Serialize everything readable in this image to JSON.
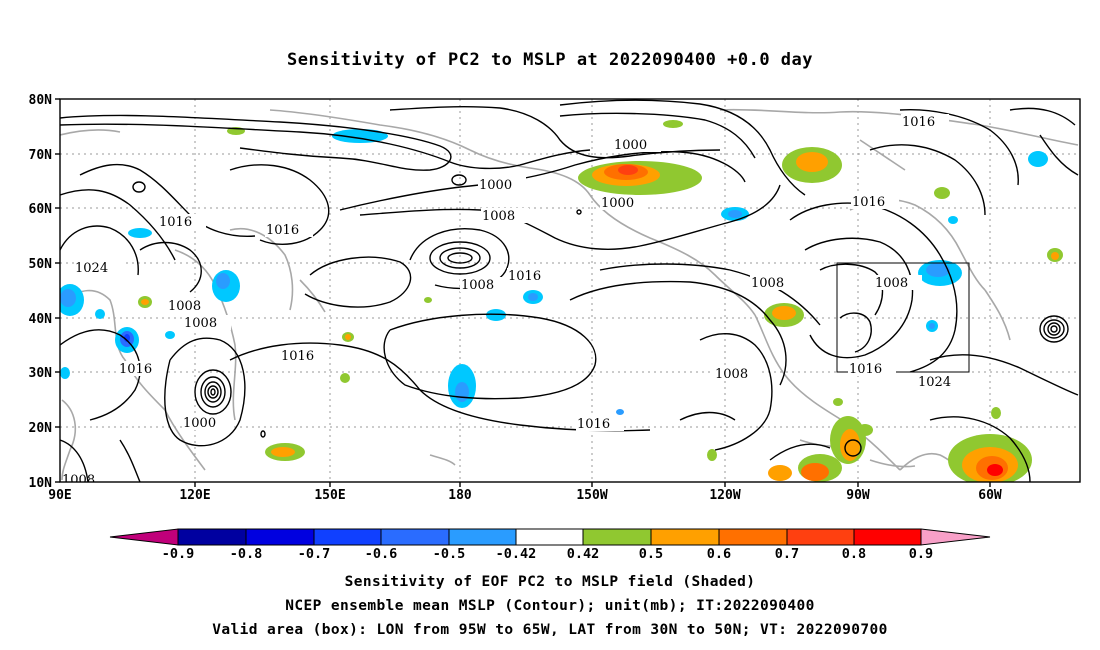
{
  "title": "Sensitivity of PC2 to MSLP at 2022090400 +0.0 day",
  "map": {
    "lat_ticks": [
      "80N",
      "70N",
      "60N",
      "50N",
      "40N",
      "30N",
      "20N",
      "10N"
    ],
    "lon_ticks": [
      "90E",
      "120E",
      "150E",
      "180",
      "150W",
      "120W",
      "90W",
      "60W"
    ],
    "box_label": "valid area box",
    "contour_labels": [
      "1000",
      "1000",
      "1000",
      "1008",
      "1008",
      "1008",
      "1008",
      "1008",
      "1008",
      "1016",
      "1016",
      "1016",
      "1016",
      "1016",
      "1016",
      "1016",
      "1016",
      "1016",
      "1024",
      "1024",
      "1008"
    ]
  },
  "colorbar": {
    "labels": [
      "-0.9",
      "-0.8",
      "-0.7",
      "-0.6",
      "-0.5",
      "-0.42",
      "0.42",
      "0.5",
      "0.6",
      "0.7",
      "0.8",
      "0.9"
    ],
    "colors": [
      "#c0007a",
      "#0000a0",
      "#0000e0",
      "#1040ff",
      "#2a6cff",
      "#2a9cff",
      "#00c8ff",
      "#ffffff",
      "#90c830",
      "#ffa000",
      "#ff7000",
      "#ff4010",
      "#ff0000",
      "#f8a0c8"
    ]
  },
  "captions": {
    "line1": "Sensitivity of EOF PC2 to MSLP field (Shaded)",
    "line2": "NCEP ensemble mean MSLP (Contour); unit(mb); IT:2022090400",
    "line3": "Valid area (box): LON from 95W to 65W, LAT from 30N to 50N; VT: 2022090700"
  }
}
